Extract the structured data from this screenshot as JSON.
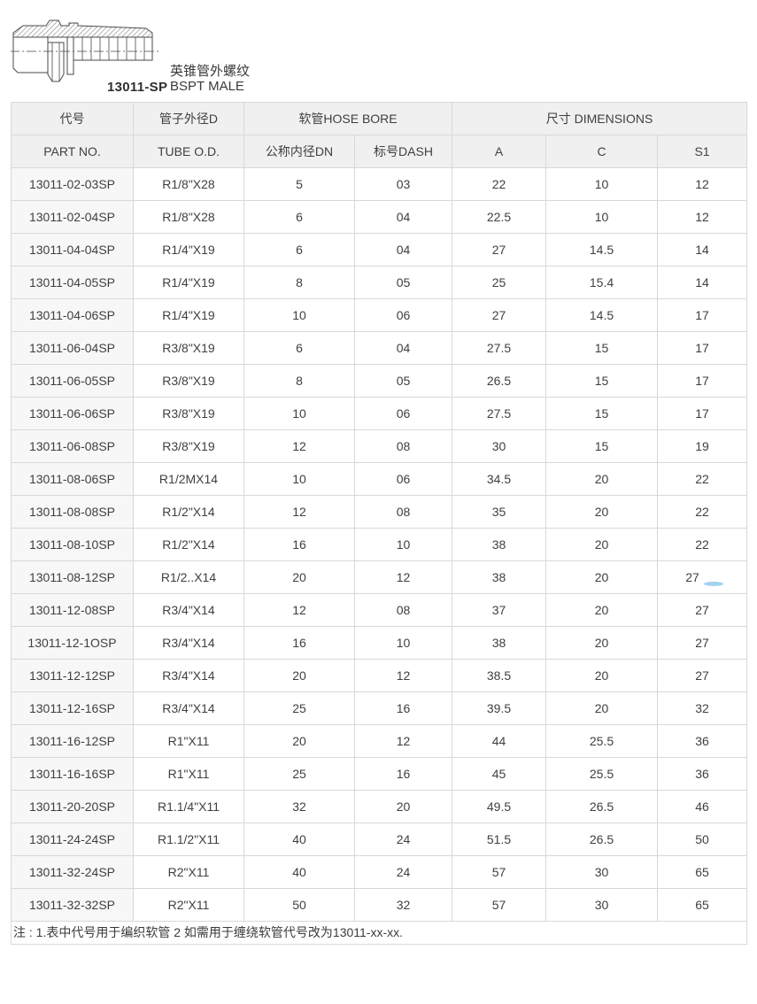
{
  "header": {
    "model": "13011-SP",
    "title_cn": "英锥管外螺纹",
    "title_en": "BSPT MALE",
    "drawing_alt": "bspt-male-hose-fitting-section-drawing"
  },
  "table": {
    "columns": {
      "col1_cn": "代号",
      "col1_en": "PART NO.",
      "col2_cn": "管子外径D",
      "col2_en": "TUBE O.D.",
      "group_hose": "软管HOSE BORE",
      "col3": "公称内径DN",
      "col4": "标号DASH",
      "group_dim": "尺寸 DIMENSIONS",
      "col5": "A",
      "col6": "C",
      "col7": "S1"
    },
    "rows": [
      {
        "part_no": "13011-02-03SP",
        "tube_od": "R1/8\"X28",
        "dn": "5",
        "dash": "03",
        "a": "22",
        "c": "10",
        "s1": "12"
      },
      {
        "part_no": "13011-02-04SP",
        "tube_od": "R1/8\"X28",
        "dn": "6",
        "dash": "04",
        "a": "22.5",
        "c": "10",
        "s1": "12"
      },
      {
        "part_no": "13011-04-04SP",
        "tube_od": "R1/4\"X19",
        "dn": "6",
        "dash": "04",
        "a": "27",
        "c": "14.5",
        "s1": "14"
      },
      {
        "part_no": "13011-04-05SP",
        "tube_od": "R1/4\"X19",
        "dn": "8",
        "dash": "05",
        "a": "25",
        "c": "15.4",
        "s1": "14"
      },
      {
        "part_no": "13011-04-06SP",
        "tube_od": "R1/4\"X19",
        "dn": "10",
        "dash": "06",
        "a": "27",
        "c": "14.5",
        "s1": "17"
      },
      {
        "part_no": "13011-06-04SP",
        "tube_od": "R3/8\"X19",
        "dn": "6",
        "dash": "04",
        "a": "27.5",
        "c": "15",
        "s1": "17"
      },
      {
        "part_no": "13011-06-05SP",
        "tube_od": "R3/8\"X19",
        "dn": "8",
        "dash": "05",
        "a": "26.5",
        "c": "15",
        "s1": "17"
      },
      {
        "part_no": "13011-06-06SP",
        "tube_od": "R3/8\"X19",
        "dn": "10",
        "dash": "06",
        "a": "27.5",
        "c": "15",
        "s1": "17"
      },
      {
        "part_no": "13011-06-08SP",
        "tube_od": "R3/8\"X19",
        "dn": "12",
        "dash": "08",
        "a": "30",
        "c": "15",
        "s1": "19"
      },
      {
        "part_no": "13011-08-06SP",
        "tube_od": "R1/2MX14",
        "dn": "10",
        "dash": "06",
        "a": "34.5",
        "c": "20",
        "s1": "22"
      },
      {
        "part_no": "13011-08-08SP",
        "tube_od": "R1/2\"X14",
        "dn": "12",
        "dash": "08",
        "a": "35",
        "c": "20",
        "s1": "22"
      },
      {
        "part_no": "13011-08-10SP",
        "tube_od": "R1/2\"X14",
        "dn": "16",
        "dash": "10",
        "a": "38",
        "c": "20",
        "s1": "22"
      },
      {
        "part_no": "13011-08-12SP",
        "tube_od": "R1/2..X14",
        "dn": "20",
        "dash": "12",
        "a": "38",
        "c": "20",
        "s1": "27",
        "artifact": true
      },
      {
        "part_no": "13011-12-08SP",
        "tube_od": "R3/4\"X14",
        "dn": "12",
        "dash": "08",
        "a": "37",
        "c": "20",
        "s1": "27"
      },
      {
        "part_no": "13011-12-1OSP",
        "tube_od": "R3/4\"X14",
        "dn": "16",
        "dash": "10",
        "a": "38",
        "c": "20",
        "s1": "27"
      },
      {
        "part_no": "13011-12-12SP",
        "tube_od": "R3/4\"X14",
        "dn": "20",
        "dash": "12",
        "a": "38.5",
        "c": "20",
        "s1": "27"
      },
      {
        "part_no": "13011-12-16SP",
        "tube_od": "R3/4\"X14",
        "dn": "25",
        "dash": "16",
        "a": "39.5",
        "c": "20",
        "s1": "32"
      },
      {
        "part_no": "13011-16-12SP",
        "tube_od": "R1\"X11",
        "dn": "20",
        "dash": "12",
        "a": "44",
        "c": "25.5",
        "s1": "36"
      },
      {
        "part_no": "13011-16-16SP",
        "tube_od": "R1\"X11",
        "dn": "25",
        "dash": "16",
        "a": "45",
        "c": "25.5",
        "s1": "36"
      },
      {
        "part_no": "13011-20-20SP",
        "tube_od": "R1.1/4\"X11",
        "dn": "32",
        "dash": "20",
        "a": "49.5",
        "c": "26.5",
        "s1": "46"
      },
      {
        "part_no": "13011-24-24SP",
        "tube_od": "R1.1/2\"X11",
        "dn": "40",
        "dash": "24",
        "a": "51.5",
        "c": "26.5",
        "s1": "50"
      },
      {
        "part_no": "13011-32-24SP",
        "tube_od": "R2\"X11",
        "dn": "40",
        "dash": "24",
        "a": "57",
        "c": "30",
        "s1": "65"
      },
      {
        "part_no": "13011-32-32SP",
        "tube_od": "R2\"X11",
        "dn": "50",
        "dash": "32",
        "a": "57",
        "c": "30",
        "s1": "65"
      }
    ]
  },
  "note": "注 : 1.表中代号用于编织软管 2 如需用于缠绕软管代号改为13011-xx-xx.",
  "colors": {
    "border": "#d8d8d8",
    "header_bg": "#f0f0f0",
    "first_col_bg": "#f7f7f7",
    "text": "#3f3f3f",
    "artifact_blue": "#a2d2ef"
  }
}
